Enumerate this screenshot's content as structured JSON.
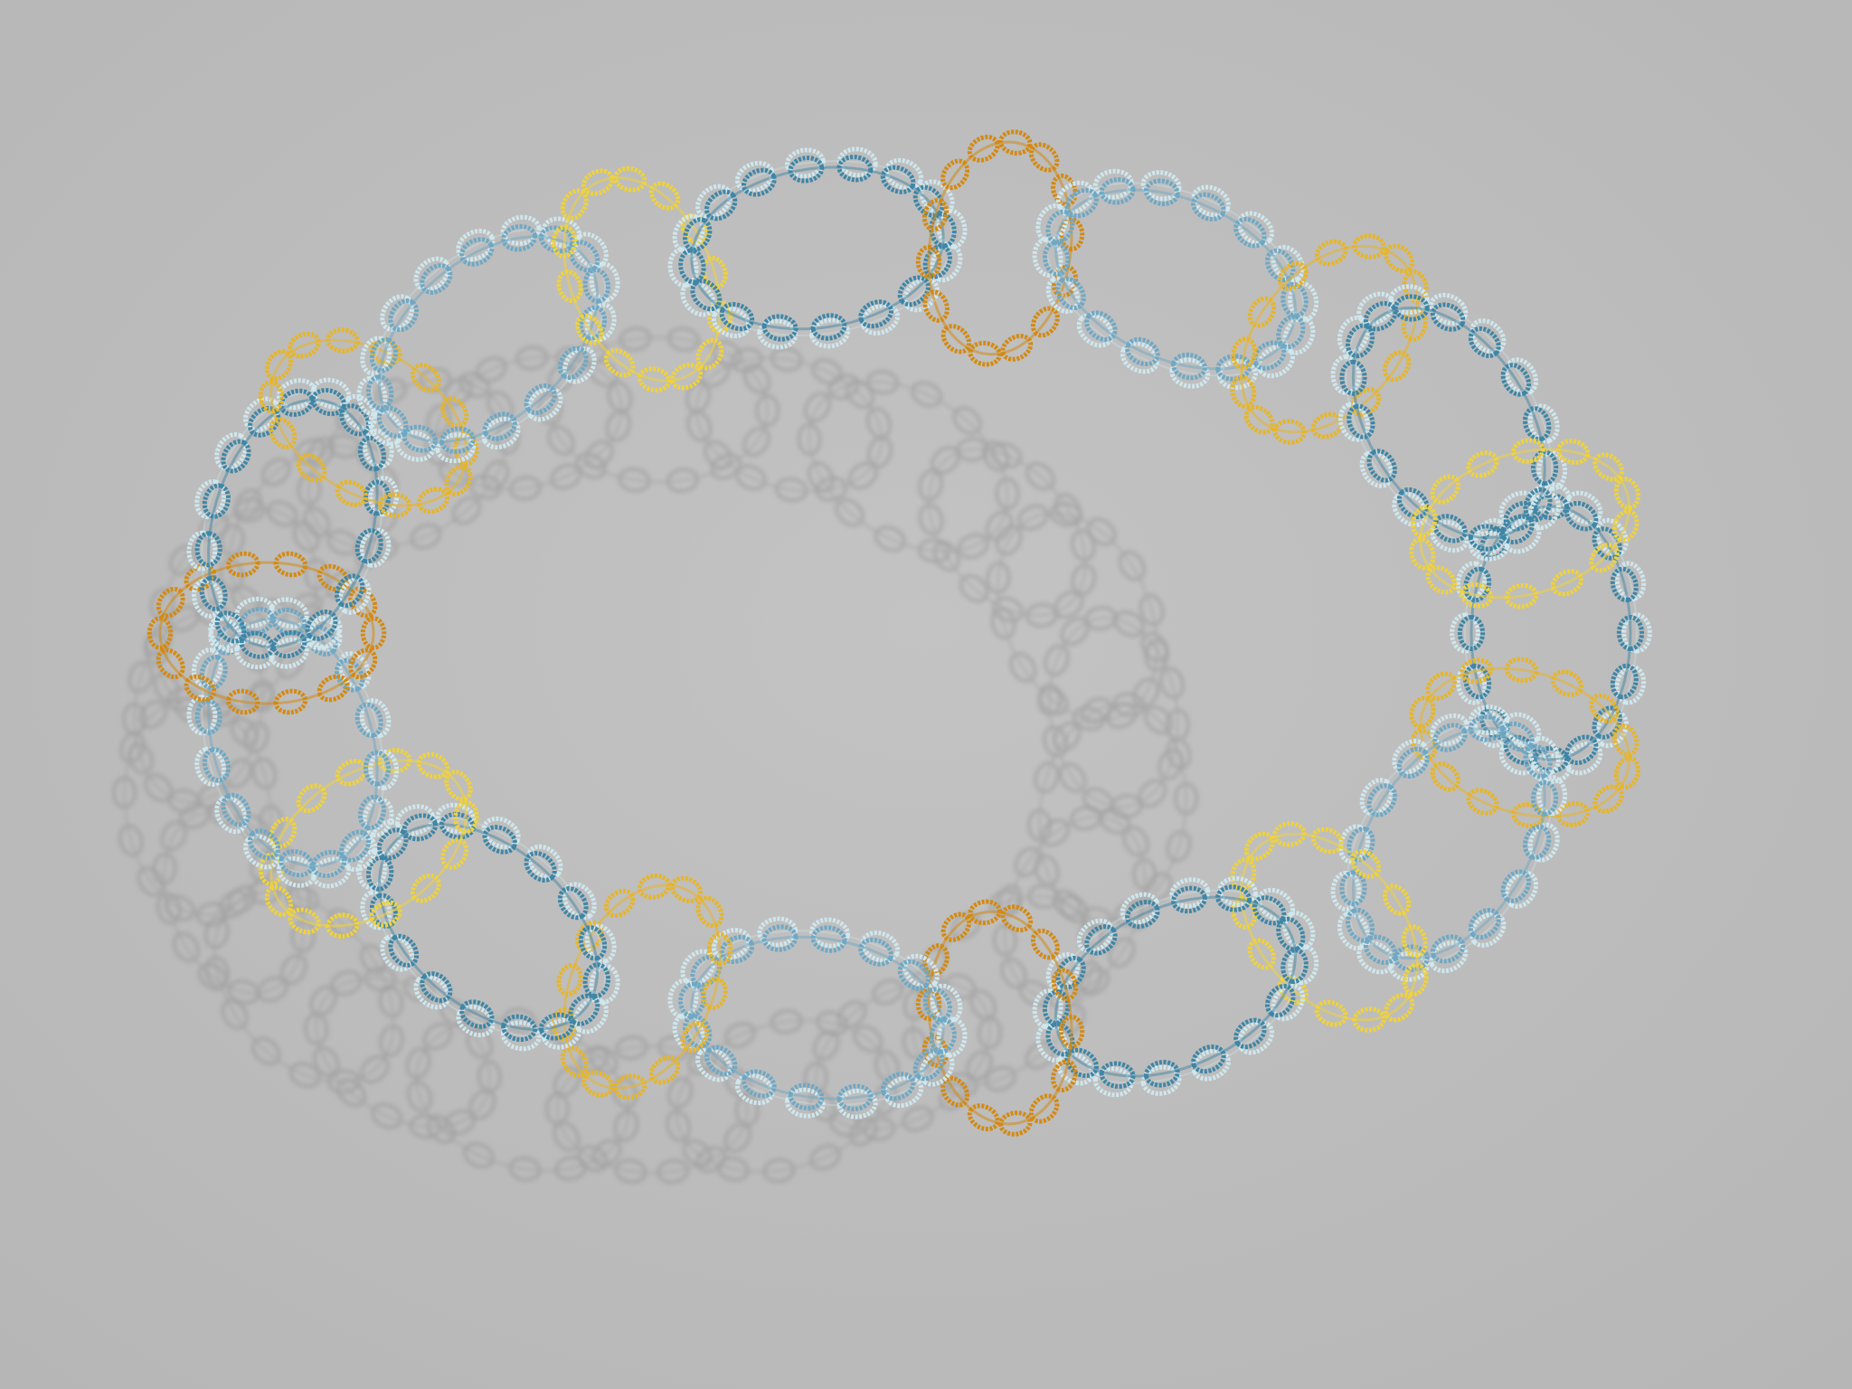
{
  "scene": {
    "subject": "necklace-of-interlocked-ring-chains",
    "colors": {
      "background": "#bdbdbd",
      "shadow": "#8f8f8f",
      "blue_dark": "#3f86a6",
      "blue_mid": "#6fa8c4",
      "blue_light": "#cfe6ec",
      "gold": "#e7b528",
      "gold_dark": "#d48a12",
      "yellow": "#efd23c"
    }
  }
}
